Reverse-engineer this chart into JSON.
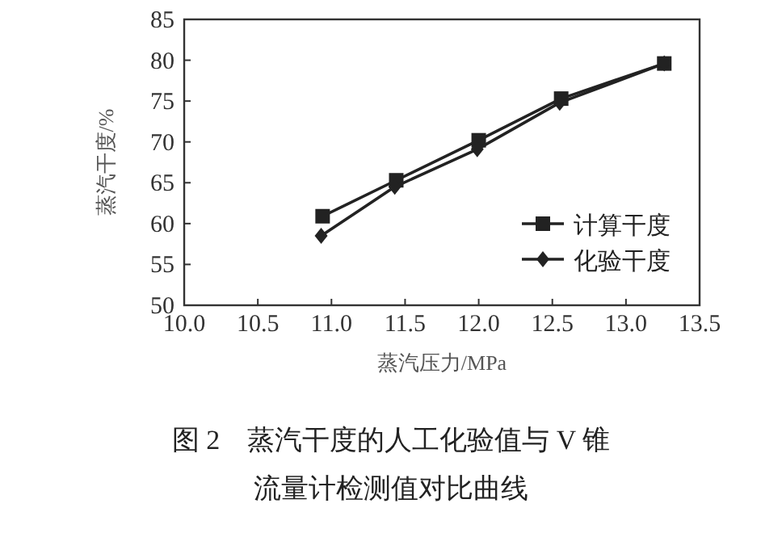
{
  "chart_data": {
    "type": "line",
    "xlabel": "蒸汽压力/MPa",
    "ylabel": "蒸汽干度/%",
    "annotations": [
      "图 2　蒸汽干度的人工化验值与 V 锥",
      "流量计检测值对比曲线"
    ],
    "xlim": [
      10.0,
      13.5
    ],
    "xticks": [
      {
        "value": 10.0,
        "label": "10.0"
      },
      {
        "value": 10.5,
        "label": "10.5"
      },
      {
        "value": 11.0,
        "label": "11.0"
      },
      {
        "value": 11.5,
        "label": "11.5"
      },
      {
        "value": 12.0,
        "label": "12.0"
      },
      {
        "value": 12.5,
        "label": "12.5"
      },
      {
        "value": 13.0,
        "label": "13.0"
      },
      {
        "value": 13.5,
        "label": "13.5"
      }
    ],
    "ylim": [
      50,
      85
    ],
    "yticks": [
      50,
      55,
      60,
      65,
      70,
      75,
      80,
      85
    ],
    "legend": "right",
    "grid": false,
    "series": [
      {
        "name": "计算干度",
        "color": "#222222",
        "marker": "square",
        "x": [
          10.94,
          11.44,
          12.0,
          12.56,
          13.26
        ],
        "values": [
          60.9,
          65.3,
          70.2,
          75.3,
          79.6
        ]
      },
      {
        "name": "化验干度",
        "color": "#222222",
        "marker": "diamond",
        "x": [
          10.93,
          11.43,
          11.99,
          12.55,
          13.26
        ],
        "values": [
          58.5,
          64.5,
          69.1,
          74.8,
          79.6
        ]
      }
    ]
  }
}
